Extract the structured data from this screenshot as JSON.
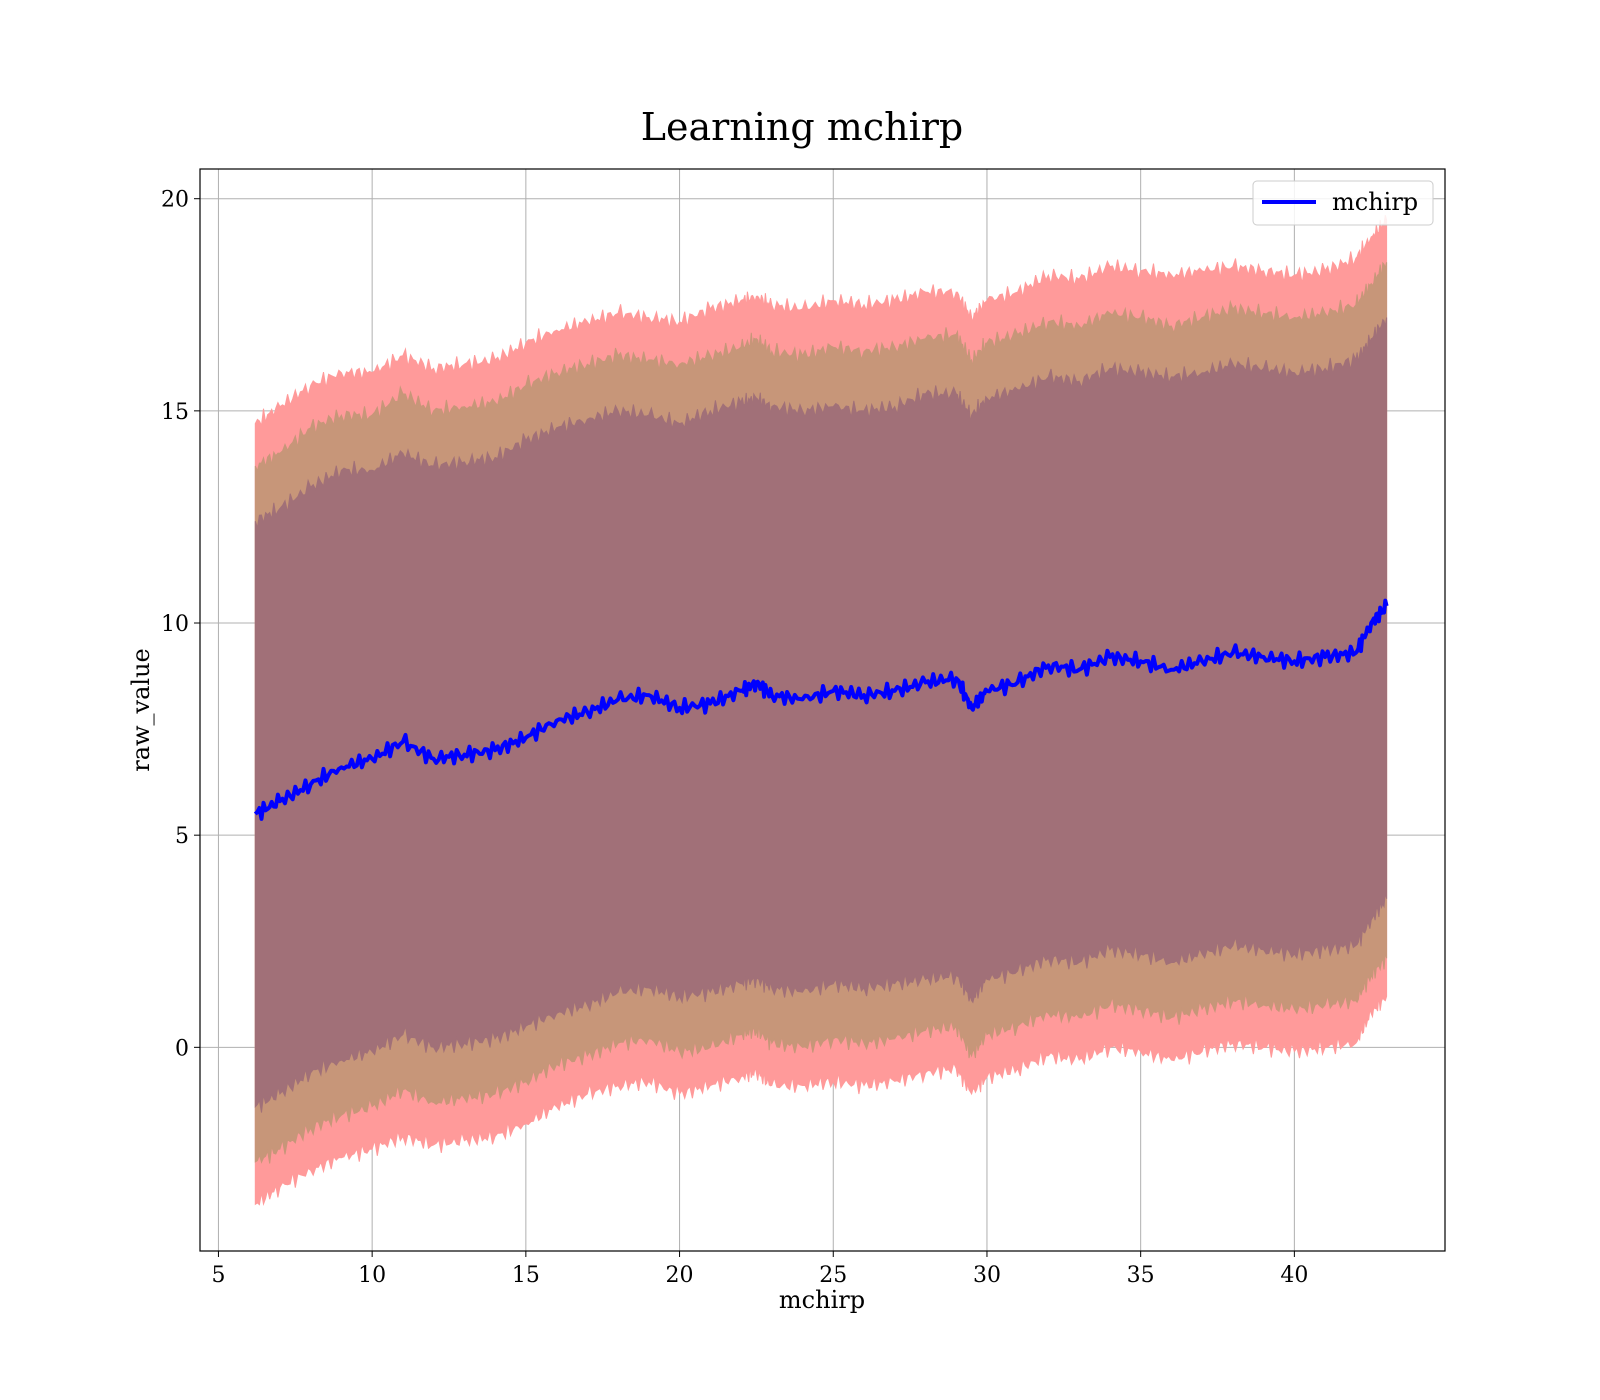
{
  "chart_data": {
    "type": "line",
    "title": "Learning mchirp",
    "xlabel": "mchirp",
    "ylabel": "raw_value",
    "xlim": [
      4.4,
      44.9
    ],
    "ylim": [
      -4.8,
      20.7
    ],
    "xticks": [
      5,
      10,
      15,
      20,
      25,
      30,
      35,
      40
    ],
    "yticks": [
      0,
      5,
      10,
      15,
      20
    ],
    "grid": true,
    "legend_position": "top-right",
    "colors": {
      "mean": "#0000ff",
      "band_outer": "#ff9a9a",
      "band_middle": "#c79679",
      "band_inner": "#a17078"
    },
    "series": [
      {
        "name": "mchirp",
        "x": [
          6.2,
          7.0,
          8.0,
          9.0,
          10.0,
          11.0,
          12.0,
          13.0,
          14.0,
          15.0,
          16.0,
          17.0,
          18.0,
          19.0,
          20.0,
          21.0,
          22.0,
          22.5,
          23.0,
          24.0,
          25.0,
          26.0,
          27.0,
          28.0,
          29.0,
          29.5,
          30.0,
          31.0,
          32.0,
          33.0,
          34.0,
          35.0,
          36.0,
          37.0,
          38.0,
          39.0,
          40.0,
          41.0,
          42.0,
          42.5,
          43.0
        ],
        "values": [
          5.5,
          5.8,
          6.2,
          6.6,
          6.8,
          7.2,
          6.8,
          6.9,
          7.0,
          7.3,
          7.7,
          7.9,
          8.2,
          8.3,
          8.0,
          8.1,
          8.4,
          8.6,
          8.3,
          8.2,
          8.4,
          8.3,
          8.4,
          8.6,
          8.7,
          8.0,
          8.4,
          8.6,
          9.0,
          8.9,
          9.2,
          9.1,
          8.9,
          9.1,
          9.3,
          9.2,
          9.1,
          9.2,
          9.3,
          10.0,
          10.4
        ]
      }
    ],
    "bands": [
      {
        "level": "outer",
        "upper": [
          14.7,
          15.1,
          15.6,
          15.9,
          15.9,
          16.3,
          16.0,
          16.1,
          16.2,
          16.6,
          16.9,
          17.1,
          17.3,
          17.2,
          17.1,
          17.4,
          17.6,
          17.7,
          17.5,
          17.4,
          17.6,
          17.5,
          17.6,
          17.8,
          17.8,
          17.2,
          17.6,
          17.8,
          18.2,
          18.1,
          18.4,
          18.3,
          18.2,
          18.3,
          18.4,
          18.3,
          18.2,
          18.3,
          18.6,
          19.1,
          19.5
        ],
        "lower": [
          -3.7,
          -3.3,
          -2.9,
          -2.6,
          -2.4,
          -2.1,
          -2.3,
          -2.2,
          -2.1,
          -1.8,
          -1.4,
          -1.1,
          -0.9,
          -0.8,
          -1.1,
          -0.9,
          -0.7,
          -0.6,
          -0.9,
          -0.9,
          -0.8,
          -0.9,
          -0.8,
          -0.6,
          -0.5,
          -1.1,
          -0.7,
          -0.5,
          -0.2,
          -0.3,
          0.0,
          -0.1,
          -0.3,
          -0.1,
          0.1,
          0.0,
          -0.1,
          0.0,
          0.1,
          0.8,
          1.2
        ]
      },
      {
        "level": "middle",
        "upper": [
          13.7,
          14.0,
          14.6,
          14.9,
          14.9,
          15.4,
          15.0,
          15.1,
          15.2,
          15.6,
          15.9,
          16.1,
          16.3,
          16.2,
          16.1,
          16.3,
          16.5,
          16.7,
          16.4,
          16.3,
          16.5,
          16.4,
          16.5,
          16.7,
          16.8,
          16.2,
          16.6,
          16.8,
          17.1,
          17.0,
          17.3,
          17.2,
          17.0,
          17.2,
          17.4,
          17.3,
          17.2,
          17.3,
          17.5,
          18.0,
          18.5
        ],
        "lower": [
          -2.7,
          -2.4,
          -1.9,
          -1.6,
          -1.4,
          -1.0,
          -1.3,
          -1.2,
          -1.1,
          -0.8,
          -0.4,
          -0.2,
          0.1,
          0.2,
          -0.1,
          0.0,
          0.3,
          0.4,
          0.1,
          0.0,
          0.2,
          0.1,
          0.2,
          0.4,
          0.5,
          -0.2,
          0.3,
          0.5,
          0.8,
          0.7,
          1.0,
          0.9,
          0.7,
          0.9,
          1.1,
          1.0,
          0.9,
          1.0,
          1.1,
          1.7,
          2.1
        ]
      },
      {
        "level": "inner",
        "upper": [
          12.4,
          12.7,
          13.2,
          13.6,
          13.6,
          14.0,
          13.7,
          13.8,
          13.9,
          14.3,
          14.6,
          14.8,
          15.0,
          14.9,
          14.7,
          15.0,
          15.2,
          15.3,
          15.1,
          15.0,
          15.1,
          15.0,
          15.1,
          15.4,
          15.4,
          14.9,
          15.3,
          15.5,
          15.8,
          15.7,
          16.0,
          15.9,
          15.8,
          15.9,
          16.1,
          16.0,
          15.9,
          16.0,
          16.2,
          16.7,
          17.2
        ],
        "lower": [
          -1.4,
          -1.1,
          -0.6,
          -0.3,
          -0.1,
          0.3,
          0.0,
          0.1,
          0.2,
          0.5,
          0.8,
          1.0,
          1.3,
          1.4,
          1.2,
          1.3,
          1.5,
          1.6,
          1.4,
          1.3,
          1.5,
          1.4,
          1.5,
          1.6,
          1.7,
          1.1,
          1.6,
          1.8,
          2.1,
          2.0,
          2.3,
          2.2,
          2.0,
          2.2,
          2.4,
          2.3,
          2.2,
          2.3,
          2.4,
          3.0,
          3.5
        ]
      }
    ]
  }
}
